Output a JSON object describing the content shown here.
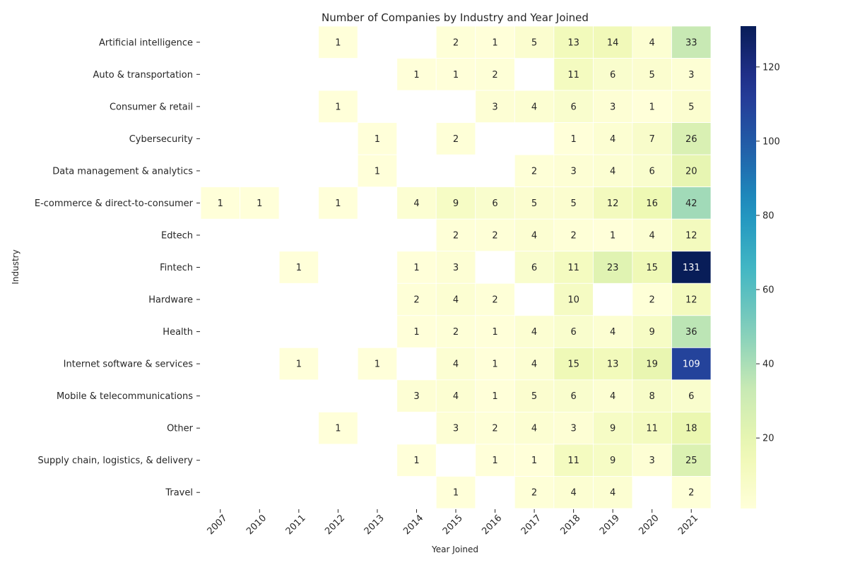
{
  "chart_data": {
    "type": "heatmap",
    "title": "Number of Companies by Industry and Year Joined",
    "xlabel": "Year Joined",
    "ylabel": "Industry",
    "x": [
      "2007",
      "2010",
      "2011",
      "2012",
      "2013",
      "2014",
      "2015",
      "2016",
      "2017",
      "2018",
      "2019",
      "2020",
      "2021"
    ],
    "y": [
      "Artificial intelligence",
      "Auto & transportation",
      "Consumer & retail",
      "Cybersecurity",
      "Data management & analytics",
      "E-commerce & direct-to-consumer",
      "Edtech",
      "Fintech",
      "Hardware",
      "Health",
      "Internet software & services",
      "Mobile & telecommunications",
      "Other",
      "Supply chain, logistics, & delivery",
      "Travel"
    ],
    "values": [
      [
        null,
        null,
        null,
        1,
        null,
        null,
        2,
        1,
        5,
        13,
        14,
        4,
        33
      ],
      [
        null,
        null,
        null,
        null,
        null,
        1,
        1,
        2,
        null,
        11,
        6,
        5,
        3
      ],
      [
        null,
        null,
        null,
        1,
        null,
        null,
        null,
        3,
        4,
        6,
        3,
        1,
        5
      ],
      [
        null,
        null,
        null,
        null,
        1,
        null,
        2,
        null,
        null,
        1,
        4,
        7,
        26
      ],
      [
        null,
        null,
        null,
        null,
        1,
        null,
        null,
        null,
        2,
        3,
        4,
        6,
        20
      ],
      [
        1,
        1,
        null,
        1,
        null,
        4,
        9,
        6,
        5,
        5,
        12,
        16,
        42
      ],
      [
        null,
        null,
        null,
        null,
        null,
        null,
        2,
        2,
        4,
        2,
        1,
        4,
        12
      ],
      [
        null,
        null,
        1,
        null,
        null,
        1,
        3,
        null,
        6,
        11,
        23,
        15,
        131
      ],
      [
        null,
        null,
        null,
        null,
        null,
        2,
        4,
        2,
        null,
        10,
        null,
        2,
        12
      ],
      [
        null,
        null,
        null,
        null,
        null,
        1,
        2,
        1,
        4,
        6,
        4,
        9,
        36
      ],
      [
        null,
        null,
        1,
        null,
        1,
        null,
        4,
        1,
        4,
        15,
        13,
        19,
        109
      ],
      [
        null,
        null,
        null,
        null,
        null,
        3,
        4,
        1,
        5,
        6,
        4,
        8,
        6
      ],
      [
        null,
        null,
        null,
        1,
        null,
        null,
        3,
        2,
        4,
        3,
        9,
        11,
        18
      ],
      [
        null,
        null,
        null,
        null,
        null,
        1,
        null,
        1,
        1,
        11,
        9,
        3,
        25
      ],
      [
        null,
        null,
        null,
        null,
        null,
        null,
        1,
        null,
        2,
        4,
        4,
        null,
        2
      ]
    ],
    "colormap": "YlGnBu",
    "vmin": 1,
    "vmax": 131,
    "colorbar_ticks": [
      20,
      40,
      60,
      80,
      100,
      120
    ],
    "grid": false
  }
}
